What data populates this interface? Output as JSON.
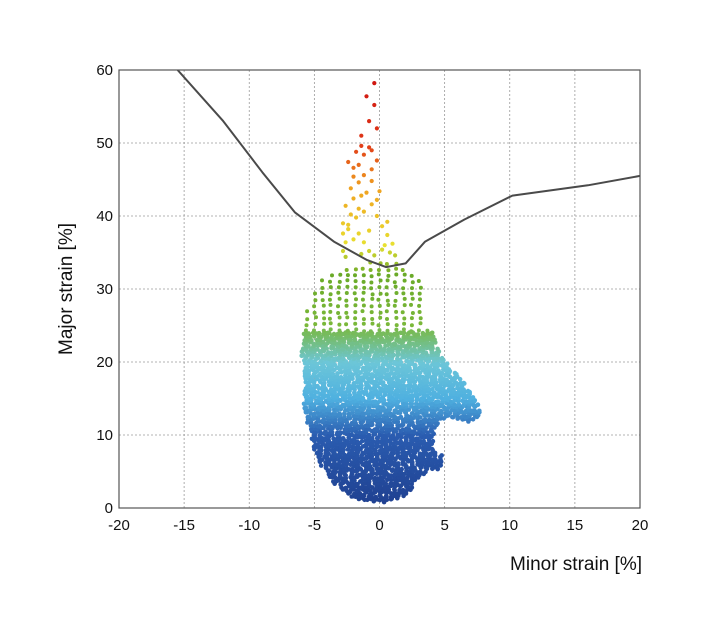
{
  "chart_data": {
    "type": "scatter",
    "title": "",
    "xlabel": "Minor strain [%]",
    "ylabel": "Major strain [%]",
    "xlim": [
      -20,
      20
    ],
    "ylim": [
      0,
      60
    ],
    "grid": true,
    "xticks": [
      "-20",
      "-15",
      "-10",
      "-5",
      "0",
      "5",
      "10",
      "15",
      "20"
    ],
    "yticks": [
      "0",
      "10",
      "20",
      "30",
      "40",
      "50",
      "60"
    ],
    "color_scale": [
      {
        "y": 0,
        "color": "#1f3f8f"
      },
      {
        "y": 10,
        "color": "#2a5cb0"
      },
      {
        "y": 15,
        "color": "#4fb0e0"
      },
      {
        "y": 20,
        "color": "#6cc6d8"
      },
      {
        "y": 25,
        "color": "#7ab83a"
      },
      {
        "y": 32,
        "color": "#6aaa28"
      },
      {
        "y": 36,
        "color": "#e8e030"
      },
      {
        "y": 44,
        "color": "#f0a020"
      },
      {
        "y": 50,
        "color": "#e03818"
      },
      {
        "y": 60,
        "color": "#cc1010"
      }
    ],
    "series": [
      {
        "type": "line",
        "color": "#4a4a4a",
        "x": [
          -15.5,
          -12,
          -9,
          -6.5,
          -3.5,
          -1,
          0.5,
          2,
          3.5,
          6.5,
          10.2,
          16,
          20
        ],
        "y": [
          60,
          53,
          46,
          40.5,
          36.5,
          34,
          33,
          33.5,
          36.5,
          39.5,
          42.8,
          44.2,
          45.5
        ]
      },
      {
        "type": "scatter_outline",
        "outline": [
          [
            -1.0,
            0.8
          ],
          [
            1.0,
            0.8
          ],
          [
            2.2,
            2
          ],
          [
            3.0,
            4
          ],
          [
            3.8,
            5.2
          ],
          [
            4.8,
            5.4
          ],
          [
            4.8,
            7.2
          ],
          [
            4.0,
            8.2
          ],
          [
            4.2,
            10
          ],
          [
            4.6,
            11.8
          ],
          [
            5.2,
            12.6
          ],
          [
            6.0,
            12.2
          ],
          [
            7.0,
            11.6
          ],
          [
            7.8,
            12.6
          ],
          [
            7.6,
            14.6
          ],
          [
            6.8,
            16.4
          ],
          [
            6.0,
            18.2
          ],
          [
            5.0,
            20.2
          ],
          [
            4.4,
            22
          ],
          [
            4.0,
            24.6
          ],
          [
            3.2,
            25.6
          ],
          [
            3.6,
            28
          ],
          [
            3.4,
            30
          ],
          [
            2.8,
            31.8
          ],
          [
            2.0,
            33
          ],
          [
            1.0,
            34
          ],
          [
            -0.5,
            34.2
          ],
          [
            -1.8,
            33
          ],
          [
            -3.2,
            32.6
          ],
          [
            -4.6,
            31.2
          ],
          [
            -5.4,
            28.5
          ],
          [
            -5.8,
            25
          ],
          [
            -6.0,
            21
          ],
          [
            -5.8,
            17
          ],
          [
            -5.8,
            13
          ],
          [
            -5.2,
            9
          ],
          [
            -4.6,
            6
          ],
          [
            -3.6,
            3.5
          ],
          [
            -2.2,
            1.6
          ]
        ]
      },
      {
        "type": "scatter_spike",
        "points": [
          [
            -2.8,
            35.2
          ],
          [
            -2.6,
            36.4
          ],
          [
            -2.8,
            37.6
          ],
          [
            -2.4,
            38.2
          ],
          [
            -2.8,
            39.0
          ],
          [
            -2.2,
            40.2
          ],
          [
            -2.6,
            41.4
          ],
          [
            -1.8,
            39.8
          ],
          [
            -1.6,
            41.0
          ],
          [
            -2.0,
            42.4
          ],
          [
            -1.4,
            42.8
          ],
          [
            -2.2,
            43.8
          ],
          [
            -1.6,
            44.6
          ],
          [
            -1.0,
            43.2
          ],
          [
            -0.6,
            41.6
          ],
          [
            -0.2,
            40.0
          ],
          [
            0.2,
            38.6
          ],
          [
            0.6,
            37.4
          ],
          [
            1.0,
            36.2
          ],
          [
            0.6,
            39.2
          ],
          [
            -0.2,
            42.2
          ],
          [
            -0.6,
            44.8
          ],
          [
            -1.2,
            45.6
          ],
          [
            -2.0,
            45.4
          ],
          [
            -1.6,
            47.0
          ],
          [
            -0.6,
            46.4
          ],
          [
            -0.2,
            47.6
          ],
          [
            -1.2,
            48.4
          ],
          [
            -1.8,
            48.8
          ],
          [
            -0.8,
            49.4
          ],
          [
            -1.4,
            49.6
          ],
          [
            -0.6,
            49.0
          ],
          [
            -0.2,
            52.0
          ],
          [
            -0.8,
            53.0
          ],
          [
            -1.4,
            51.0
          ],
          [
            -0.4,
            55.2
          ],
          [
            -1.0,
            56.4
          ],
          [
            -0.4,
            58.2
          ],
          [
            -0.2,
            60.5
          ],
          [
            -2.4,
            47.4
          ],
          [
            -2.0,
            46.6
          ],
          [
            1.2,
            34.6
          ],
          [
            -2.4,
            38.8
          ],
          [
            0.0,
            43.4
          ],
          [
            -1.2,
            40.6
          ],
          [
            -0.8,
            38.0
          ],
          [
            0.4,
            36.0
          ],
          [
            -2.0,
            36.8
          ],
          [
            -1.6,
            37.6
          ],
          [
            -1.2,
            36.4
          ],
          [
            -0.8,
            35.2
          ],
          [
            0.8,
            35.0
          ],
          [
            -0.4,
            34.6
          ],
          [
            -2.6,
            34.4
          ],
          [
            -1.4,
            34.8
          ],
          [
            0.2,
            35.4
          ]
        ]
      }
    ]
  }
}
